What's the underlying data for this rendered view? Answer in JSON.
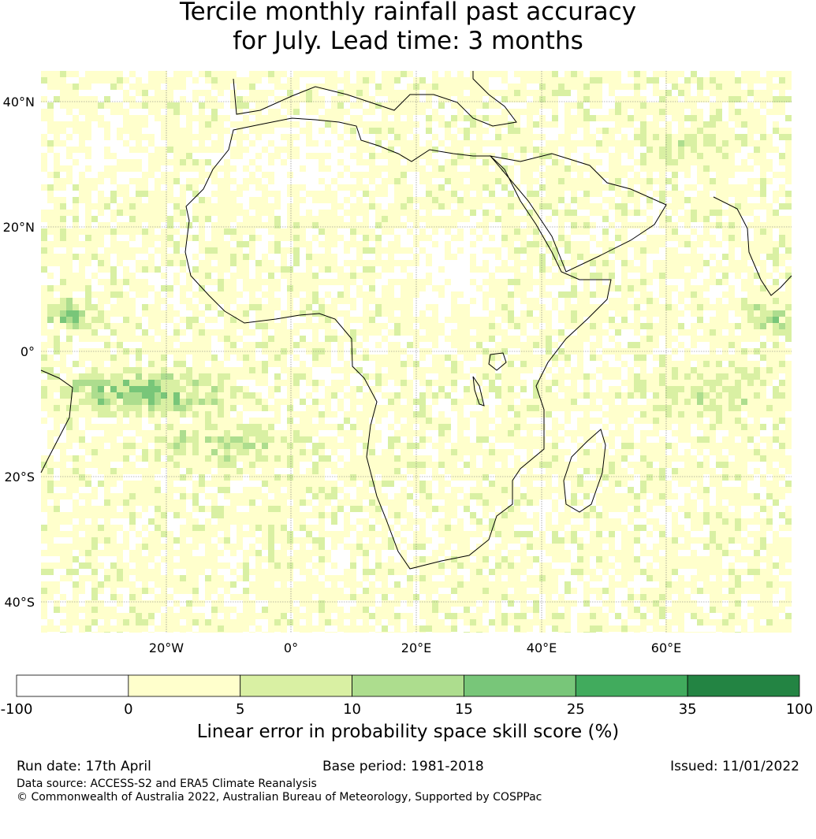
{
  "title_line1": "Tercile monthly rainfall past accuracy",
  "title_line2": "for July. Lead time: 3 months",
  "map": {
    "lat_ticks": [
      "40°N",
      "20°N",
      "0°",
      "20°S",
      "40°S"
    ],
    "lon_ticks": [
      "20°W",
      "0°",
      "20°E",
      "40°E",
      "60°E"
    ],
    "lon_range": [
      -40,
      80
    ],
    "lat_range": [
      -45,
      45
    ],
    "grid": true
  },
  "colorbar": {
    "title": "Linear error in probability space skill score (%)",
    "ticks": [
      "-100",
      "0",
      "5",
      "10",
      "15",
      "25",
      "35",
      "100"
    ],
    "colors": [
      "#ffffff",
      "#ffffcc",
      "#d9f0a3",
      "#addd8e",
      "#78c679",
      "#41ab5d",
      "#238443"
    ]
  },
  "footer": {
    "run_date": "Run date: 17th April",
    "base_period": "Base period: 1981-2018",
    "issued": "Issued: 11/01/2022",
    "data_source": "Data source: ACCESS-S2 and ERA5 Climate Reanalysis",
    "copyright": "© Commonwealth of Australia 2022, Australian Bureau of Meteorology, Supported by COSPPac"
  }
}
